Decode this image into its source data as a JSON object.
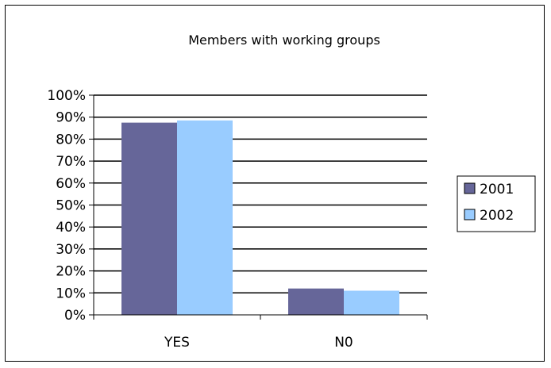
{
  "chart_data": {
    "type": "bar",
    "title": "Members with working groups",
    "categories": [
      "YES",
      "N0"
    ],
    "series": [
      {
        "name": "2001",
        "values": [
          0.875,
          0.12
        ],
        "color": "#666699"
      },
      {
        "name": "2002",
        "values": [
          0.885,
          0.11
        ],
        "color": "#99ccff"
      }
    ],
    "y_ticks": [
      "0%",
      "10%",
      "20%",
      "30%",
      "40%",
      "50%",
      "60%",
      "70%",
      "80%",
      "90%",
      "100%"
    ],
    "ylim": [
      0,
      1
    ],
    "grid": true,
    "legend_position": "right"
  }
}
